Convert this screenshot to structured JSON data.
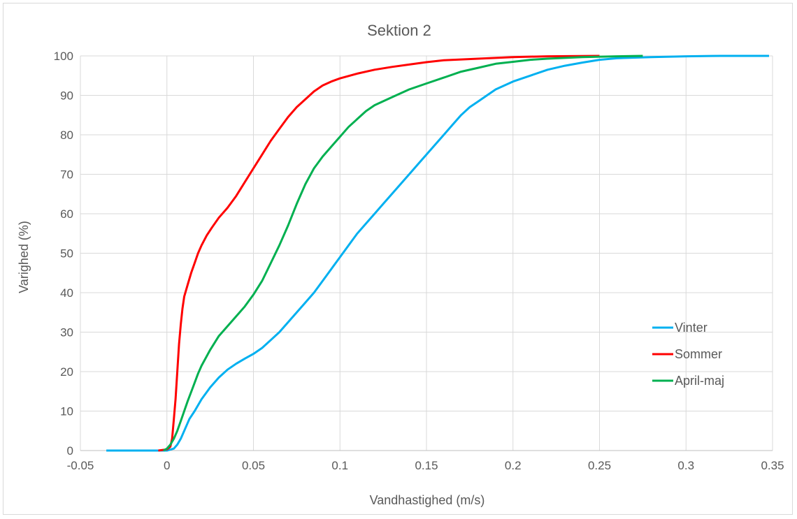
{
  "chart_data": {
    "type": "line",
    "title": "Sektion 2",
    "xlabel": "Vandhastighed (m/s)",
    "ylabel": "Varighed (%)",
    "xlim": [
      -0.05,
      0.35
    ],
    "ylim": [
      0,
      100
    ],
    "x_ticks": [
      "-0.05",
      "0",
      "0.05",
      "0.1",
      "0.15",
      "0.2",
      "0.25",
      "0.3",
      "0.35"
    ],
    "y_ticks": [
      "0",
      "10",
      "20",
      "30",
      "40",
      "50",
      "60",
      "70",
      "80",
      "90",
      "100"
    ],
    "grid": true,
    "legend_position": "right",
    "series": [
      {
        "name": "Vinter",
        "color": "#00b0f0",
        "points": [
          [
            -0.035,
            0
          ],
          [
            -0.01,
            0
          ],
          [
            0.0,
            0
          ],
          [
            0.004,
            0.5
          ],
          [
            0.006,
            1.5
          ],
          [
            0.008,
            3
          ],
          [
            0.01,
            5
          ],
          [
            0.013,
            8
          ],
          [
            0.016,
            10
          ],
          [
            0.02,
            13
          ],
          [
            0.025,
            16
          ],
          [
            0.03,
            18.5
          ],
          [
            0.035,
            20.5
          ],
          [
            0.04,
            22
          ],
          [
            0.045,
            23.3
          ],
          [
            0.05,
            24.5
          ],
          [
            0.055,
            26
          ],
          [
            0.06,
            28
          ],
          [
            0.065,
            30
          ],
          [
            0.07,
            32.5
          ],
          [
            0.075,
            35
          ],
          [
            0.08,
            37.5
          ],
          [
            0.085,
            40
          ],
          [
            0.09,
            43
          ],
          [
            0.095,
            46
          ],
          [
            0.1,
            49
          ],
          [
            0.105,
            52
          ],
          [
            0.11,
            55
          ],
          [
            0.115,
            57.5
          ],
          [
            0.12,
            60
          ],
          [
            0.125,
            62.5
          ],
          [
            0.13,
            65
          ],
          [
            0.135,
            67.5
          ],
          [
            0.14,
            70
          ],
          [
            0.145,
            72.5
          ],
          [
            0.15,
            75
          ],
          [
            0.155,
            77.5
          ],
          [
            0.16,
            80
          ],
          [
            0.165,
            82.5
          ],
          [
            0.17,
            85
          ],
          [
            0.175,
            87
          ],
          [
            0.18,
            88.5
          ],
          [
            0.185,
            90
          ],
          [
            0.19,
            91.5
          ],
          [
            0.195,
            92.5
          ],
          [
            0.2,
            93.5
          ],
          [
            0.21,
            95
          ],
          [
            0.22,
            96.5
          ],
          [
            0.23,
            97.5
          ],
          [
            0.24,
            98.3
          ],
          [
            0.25,
            99
          ],
          [
            0.26,
            99.4
          ],
          [
            0.28,
            99.7
          ],
          [
            0.3,
            99.9
          ],
          [
            0.32,
            100
          ],
          [
            0.348,
            100
          ]
        ]
      },
      {
        "name": "Sommer",
        "color": "#ff0000",
        "points": [
          [
            -0.005,
            0
          ],
          [
            0.0,
            0.3
          ],
          [
            0.002,
            1
          ],
          [
            0.003,
            3
          ],
          [
            0.004,
            8
          ],
          [
            0.005,
            13
          ],
          [
            0.006,
            20
          ],
          [
            0.007,
            27
          ],
          [
            0.008,
            32
          ],
          [
            0.009,
            36
          ],
          [
            0.01,
            39
          ],
          [
            0.012,
            42
          ],
          [
            0.014,
            45
          ],
          [
            0.016,
            47.5
          ],
          [
            0.018,
            50
          ],
          [
            0.02,
            52
          ],
          [
            0.023,
            54.5
          ],
          [
            0.026,
            56.5
          ],
          [
            0.03,
            59
          ],
          [
            0.035,
            61.5
          ],
          [
            0.04,
            64.5
          ],
          [
            0.045,
            68
          ],
          [
            0.05,
            71.5
          ],
          [
            0.055,
            75
          ],
          [
            0.06,
            78.5
          ],
          [
            0.065,
            81.5
          ],
          [
            0.07,
            84.5
          ],
          [
            0.075,
            87
          ],
          [
            0.08,
            89
          ],
          [
            0.085,
            91
          ],
          [
            0.09,
            92.5
          ],
          [
            0.095,
            93.5
          ],
          [
            0.1,
            94.3
          ],
          [
            0.11,
            95.5
          ],
          [
            0.12,
            96.5
          ],
          [
            0.13,
            97.2
          ],
          [
            0.14,
            97.8
          ],
          [
            0.15,
            98.4
          ],
          [
            0.16,
            98.9
          ],
          [
            0.18,
            99.3
          ],
          [
            0.2,
            99.7
          ],
          [
            0.22,
            99.9
          ],
          [
            0.25,
            100
          ]
        ]
      },
      {
        "name": "April-maj",
        "color": "#00b050",
        "points": [
          [
            -0.002,
            0
          ],
          [
            0.0,
            0.5
          ],
          [
            0.002,
            1.5
          ],
          [
            0.004,
            3
          ],
          [
            0.006,
            5
          ],
          [
            0.008,
            7.5
          ],
          [
            0.01,
            10
          ],
          [
            0.012,
            12.5
          ],
          [
            0.015,
            16
          ],
          [
            0.018,
            19.5
          ],
          [
            0.02,
            21.5
          ],
          [
            0.025,
            25.5
          ],
          [
            0.03,
            29
          ],
          [
            0.035,
            31.5
          ],
          [
            0.04,
            34
          ],
          [
            0.045,
            36.5
          ],
          [
            0.05,
            39.5
          ],
          [
            0.055,
            43
          ],
          [
            0.06,
            47.5
          ],
          [
            0.065,
            52
          ],
          [
            0.07,
            57
          ],
          [
            0.075,
            62.5
          ],
          [
            0.08,
            67.5
          ],
          [
            0.085,
            71.5
          ],
          [
            0.09,
            74.5
          ],
          [
            0.095,
            77
          ],
          [
            0.1,
            79.5
          ],
          [
            0.105,
            82
          ],
          [
            0.11,
            84
          ],
          [
            0.115,
            86
          ],
          [
            0.12,
            87.5
          ],
          [
            0.13,
            89.5
          ],
          [
            0.14,
            91.5
          ],
          [
            0.15,
            93
          ],
          [
            0.16,
            94.5
          ],
          [
            0.17,
            96
          ],
          [
            0.18,
            97
          ],
          [
            0.19,
            98
          ],
          [
            0.2,
            98.5
          ],
          [
            0.21,
            99
          ],
          [
            0.22,
            99.3
          ],
          [
            0.24,
            99.7
          ],
          [
            0.26,
            99.9
          ],
          [
            0.275,
            100
          ]
        ]
      }
    ]
  }
}
